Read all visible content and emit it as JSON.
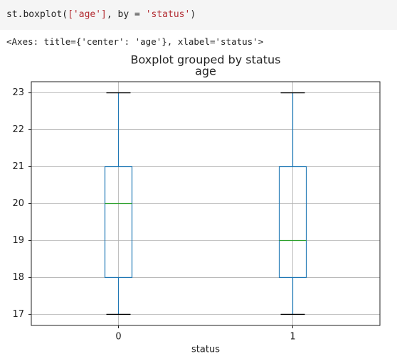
{
  "code": [
    "st.boxplot(",
    "['age']",
    ", by = ",
    "'status'",
    ")"
  ],
  "output_text": "<Axes: title={'center': 'age'}, xlabel='status'>",
  "chart_data": {
    "type": "box",
    "title": "Boxplot grouped by status",
    "subtitle": "age",
    "x_label": "status",
    "categories": [
      "0",
      "1"
    ],
    "boxes": [
      {
        "min": 17,
        "q1": 18,
        "median": 20,
        "q3": 21,
        "max": 23
      },
      {
        "min": 17,
        "q1": 18,
        "median": 19,
        "q3": 21,
        "max": 23
      }
    ],
    "box_color": "#1f77b4",
    "median_color": "#2ca02c",
    "whisker_color": "#1f77b4",
    "cap_color": "#000000",
    "ylim": [
      16.7,
      23.3
    ],
    "yticks": [
      17,
      18,
      19,
      20,
      21,
      22,
      23
    ],
    "grid": true
  }
}
